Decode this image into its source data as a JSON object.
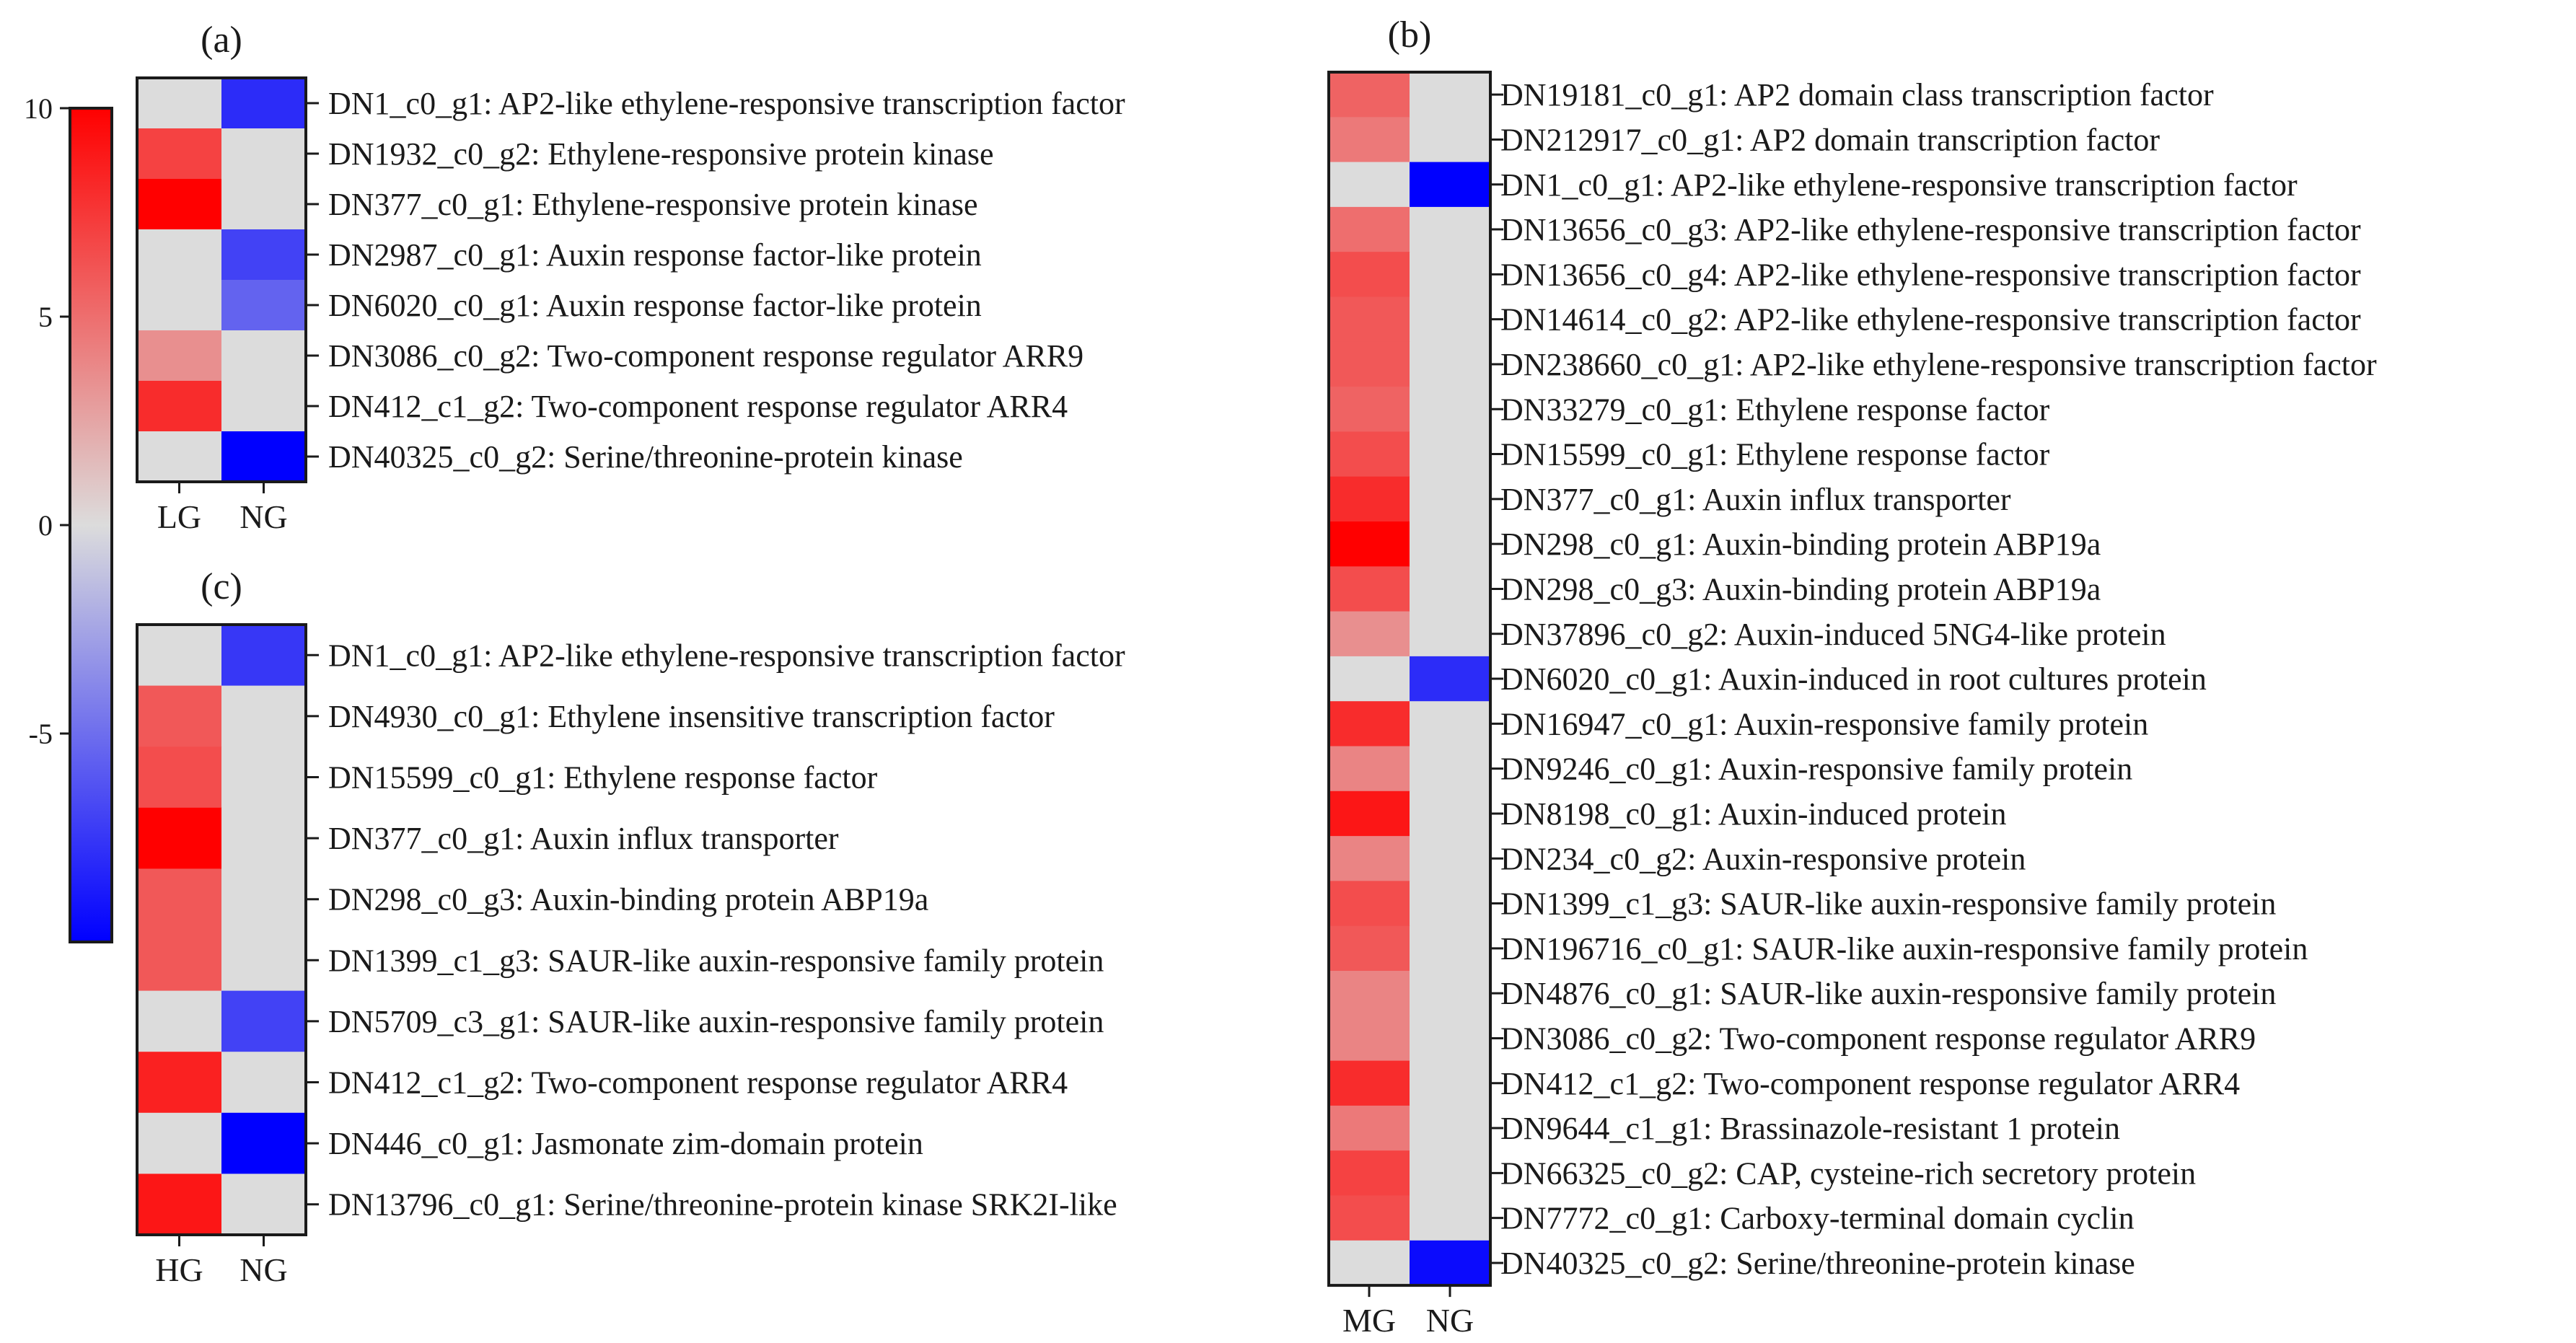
{
  "color_scale": {
    "min": -10,
    "max": 10,
    "ticks": [
      10,
      5,
      0,
      -5
    ],
    "low_color": "#0000ff",
    "mid_color": "#dcdcdc",
    "high_color": "#ff0000"
  },
  "chart_data": [
    {
      "type": "heatmap",
      "panel": "(a)",
      "columns": [
        "LG",
        "NG"
      ],
      "rows": [
        "DN1_c0_g1: AP2-like ethylene-responsive transcription factor",
        "DN1932_c0_g2: Ethylene-responsive protein kinase",
        "DN377_c0_g1: Ethylene-responsive protein kinase",
        "DN2987_c0_g1: Auxin response factor-like protein",
        "DN6020_c0_g1: Auxin response factor-like protein",
        "DN3086_c0_g2: Two-component response regulator ARR9",
        "DN412_c1_g2: Two-component response regulator ARR4",
        "DN40325_c0_g2: Serine/threonine-protein kinase"
      ],
      "values": [
        [
          0,
          -8
        ],
        [
          7,
          0
        ],
        [
          10,
          0
        ],
        [
          0,
          -7
        ],
        [
          0,
          -5.5
        ],
        [
          3.5,
          0
        ],
        [
          8,
          0
        ],
        [
          0,
          -10
        ]
      ]
    },
    {
      "type": "heatmap",
      "panel": "(b)",
      "columns": [
        "MG",
        "NG"
      ],
      "rows": [
        "DN19181_c0_g1: AP2 domain class transcription factor",
        "DN212917_c0_g1: AP2 domain transcription factor",
        "DN1_c0_g1: AP2-like ethylene-responsive transcription factor",
        "DN13656_c0_g3: AP2-like ethylene-responsive transcription factor",
        "DN13656_c0_g4: AP2-like ethylene-responsive transcription factor",
        "DN14614_c0_g2: AP2-like ethylene-responsive transcription factor",
        "DN238660_c0_g1: AP2-like ethylene-responsive transcription factor",
        "DN33279_c0_g1: Ethylene response factor",
        "DN15599_c0_g1: Ethylene response factor",
        "DN377_c0_g1: Auxin influx transporter",
        "DN298_c0_g1: Auxin-binding protein ABP19a",
        "DN298_c0_g3: Auxin-binding protein ABP19a",
        "DN37896_c0_g2: Auxin-induced 5NG4-like protein",
        "DN6020_c0_g1: Auxin-induced in root cultures protein",
        "DN16947_c0_g1: Auxin-responsive family protein",
        "DN9246_c0_g1: Auxin-responsive family protein",
        "DN8198_c0_g1: Auxin-induced protein",
        "DN234_c0_g2: Auxin-responsive protein",
        "DN1399_c1_g3: SAUR-like auxin-responsive family protein",
        "DN196716_c0_g1: SAUR-like auxin-responsive family protein",
        "DN4876_c0_g1: SAUR-like auxin-responsive family protein",
        "DN3086_c0_g2: Two-component response regulator ARR9",
        "DN412_c1_g2: Two-component response regulator ARR4",
        "DN9644_c1_g1: Brassinazole-resistant 1 protein",
        "DN66325_c0_g2: CAP, cysteine-rich secretory protein",
        "DN7772_c0_g1: Carboxy-terminal domain cyclin",
        "DN40325_c0_g2: Serine/threonine-protein kinase"
      ],
      "values": [
        [
          5.5,
          0
        ],
        [
          4.5,
          0
        ],
        [
          0,
          -10
        ],
        [
          5,
          0
        ],
        [
          6.5,
          0
        ],
        [
          6,
          0
        ],
        [
          6,
          0
        ],
        [
          5.5,
          0
        ],
        [
          6.5,
          0
        ],
        [
          8,
          0
        ],
        [
          10,
          0
        ],
        [
          6.5,
          0
        ],
        [
          3.5,
          0
        ],
        [
          0,
          -8
        ],
        [
          8,
          0
        ],
        [
          4,
          0
        ],
        [
          9,
          0
        ],
        [
          4,
          0
        ],
        [
          6.5,
          0
        ],
        [
          6,
          0
        ],
        [
          4,
          0
        ],
        [
          4,
          0
        ],
        [
          8,
          0
        ],
        [
          4.5,
          0
        ],
        [
          7,
          0
        ],
        [
          6.5,
          0
        ],
        [
          0,
          -9.5
        ]
      ]
    },
    {
      "type": "heatmap",
      "panel": "(c)",
      "columns": [
        "HG",
        "NG"
      ],
      "rows": [
        "DN1_c0_g1: AP2-like ethylene-responsive transcription factor",
        "DN4930_c0_g1: Ethylene insensitive transcription factor",
        "DN15599_c0_g1: Ethylene response factor",
        "DN377_c0_g1: Auxin influx transporter",
        "DN298_c0_g3: Auxin-binding protein ABP19a",
        "DN1399_c1_g3: SAUR-like auxin-responsive family protein",
        "DN5709_c3_g1: SAUR-like auxin-responsive family protein",
        "DN412_c1_g2: Two-component response regulator ARR4",
        "DN446_c0_g1: Jasmonate zim-domain protein",
        "DN13796_c0_g1: Serine/threonine-protein kinase SRK2I-like"
      ],
      "values": [
        [
          0,
          -7.5
        ],
        [
          6,
          0
        ],
        [
          6.5,
          0
        ],
        [
          10,
          0
        ],
        [
          6,
          0
        ],
        [
          6,
          0
        ],
        [
          0,
          -7
        ],
        [
          8.5,
          0
        ],
        [
          0,
          -10
        ],
        [
          9,
          0
        ]
      ]
    }
  ]
}
